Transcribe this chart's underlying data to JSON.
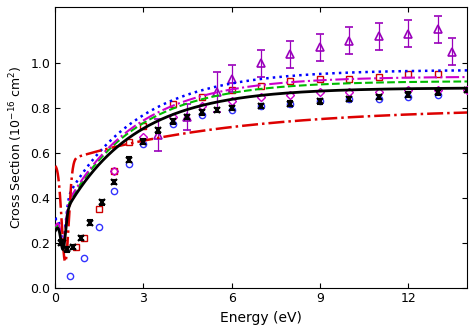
{
  "xlabel": "Energy (eV)",
  "xlim": [
    0,
    14
  ],
  "ylim": [
    0.0,
    1.25
  ],
  "yticks": [
    0.0,
    0.2,
    0.4,
    0.6,
    0.8,
    1.0
  ],
  "xticks": [
    0,
    3,
    6,
    9,
    12
  ],
  "bg_color": "#ffffff",
  "figsize": [
    4.74,
    3.32
  ],
  "dpi": 100,
  "theory_present_color": "#000000",
  "theory_green_color": "#00bb00",
  "theory_blue_color": "#0000ff",
  "theory_magenta_color": "#cc00cc",
  "theory_red_color": "#dd0000",
  "exp_blue_color": "#3333ff",
  "exp_red_color": "#cc0000",
  "exp_magenta_color": "#cc00cc",
  "exp_purple_color": "#9900bb",
  "exp_black_color": "#000000",
  "E_blue": [
    0.5,
    1.0,
    1.5,
    2.0,
    2.5,
    3.0,
    4.0,
    5.0,
    6.0,
    7.0,
    8.0,
    9.0,
    10.0,
    11.0,
    12.0,
    13.0
  ],
  "cs_blue": [
    0.05,
    0.13,
    0.27,
    0.43,
    0.55,
    0.64,
    0.73,
    0.77,
    0.79,
    0.81,
    0.82,
    0.83,
    0.84,
    0.84,
    0.85,
    0.86
  ],
  "E_red": [
    0.3,
    0.7,
    1.0,
    1.5,
    2.0,
    2.5,
    3.0,
    4.0,
    5.0,
    6.0,
    7.0,
    8.0,
    9.0,
    10.0,
    11.0,
    12.0,
    13.0
  ],
  "cs_red": [
    0.2,
    0.18,
    0.22,
    0.35,
    0.52,
    0.65,
    0.72,
    0.82,
    0.85,
    0.88,
    0.9,
    0.92,
    0.93,
    0.93,
    0.94,
    0.95,
    0.95
  ],
  "E_mag": [
    2.0,
    3.0,
    4.0,
    5.0,
    6.0,
    7.0,
    8.0,
    9.0,
    10.0,
    11.0,
    12.0,
    13.0,
    14.0
  ],
  "cs_mag": [
    0.52,
    0.67,
    0.76,
    0.81,
    0.83,
    0.85,
    0.86,
    0.87,
    0.87,
    0.87,
    0.88,
    0.88,
    0.88
  ],
  "E_tri": [
    3.5,
    4.5,
    5.5,
    6.0,
    7.0,
    8.0,
    9.0,
    10.0,
    11.0,
    12.0,
    13.0,
    13.5
  ],
  "cs_tri": [
    0.68,
    0.76,
    0.87,
    0.93,
    1.0,
    1.04,
    1.07,
    1.1,
    1.12,
    1.13,
    1.15,
    1.05
  ],
  "err_tri": [
    0.07,
    0.06,
    0.09,
    0.06,
    0.06,
    0.06,
    0.06,
    0.06,
    0.06,
    0.06,
    0.06,
    0.06
  ],
  "E_cross": [
    0.2,
    0.4,
    0.6,
    0.9,
    1.2,
    1.6,
    2.0,
    2.5,
    3.0,
    3.5,
    4.0,
    4.5,
    5.0,
    5.5,
    6.0,
    7.0,
    8.0,
    9.0,
    10.0,
    11.0,
    12.0,
    13.0,
    14.0
  ],
  "cs_cross": [
    0.2,
    0.17,
    0.18,
    0.22,
    0.29,
    0.38,
    0.47,
    0.57,
    0.65,
    0.7,
    0.74,
    0.76,
    0.78,
    0.79,
    0.8,
    0.81,
    0.82,
    0.83,
    0.84,
    0.85,
    0.86,
    0.87,
    0.88
  ],
  "err_cross_lo": [
    0.01,
    0.01,
    0.01,
    0.01,
    0.01,
    0.01,
    0.01,
    0.01,
    0.01,
    0.01,
    0.01,
    0.01,
    0.01,
    0.01,
    0.01,
    0.01,
    0.01,
    0.01,
    0.01,
    0.01,
    0.01,
    0.01,
    0.01
  ],
  "err_cross_hi": [
    0.01,
    0.01,
    0.01,
    0.01,
    0.01,
    0.01,
    0.01,
    0.01,
    0.01,
    0.01,
    0.01,
    0.01,
    0.01,
    0.01,
    0.01,
    0.01,
    0.01,
    0.01,
    0.01,
    0.01,
    0.01,
    0.01,
    0.01
  ]
}
